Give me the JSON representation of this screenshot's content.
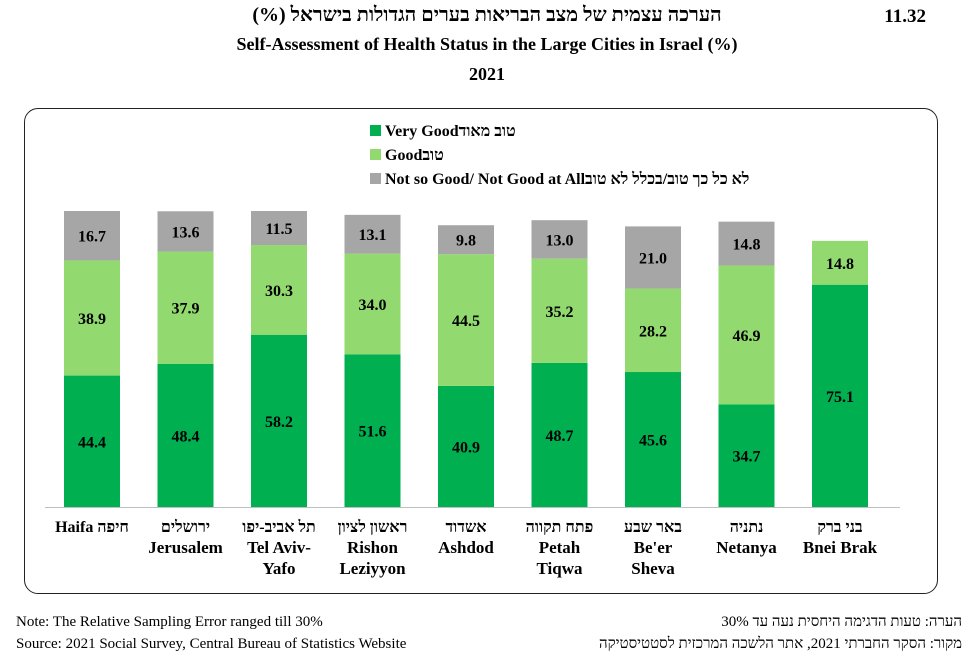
{
  "table_number": "11.32",
  "title_he": "הערכה עצמית של מצב הבריאות בערים הגדולות בישראל (%)",
  "title_en": "Self-Assessment of Health Status in the Large Cities in Israel  (%)",
  "year": "2021",
  "colors": {
    "very_good": "#00b050",
    "good": "#92d970",
    "not_good": "#a6a6a6"
  },
  "legend": [
    {
      "key": "very_good",
      "label_en": "Very Good",
      "label_he": "טוב מאוד"
    },
    {
      "key": "good",
      "label_en": "Good",
      "label_he": "טוב"
    },
    {
      "key": "not_good",
      "label_en": "Not so Good/ Not Good at All",
      "label_he": "לא כל כך טוב/בכלל לא טוב"
    }
  ],
  "chart_data": {
    "type": "bar",
    "stacked": true,
    "categories": [
      {
        "he": "חיפה",
        "en": [
          "Haifa"
        ]
      },
      {
        "he": "ירושלים",
        "en": [
          "Jerusalem"
        ]
      },
      {
        "he": "תל אביב-יפו",
        "en": [
          "Tel Aviv-",
          "Yafo"
        ]
      },
      {
        "he": "ראשון לציון",
        "en": [
          "Rishon",
          "Leziyyon"
        ]
      },
      {
        "he": "אשדוד",
        "en": [
          "Ashdod"
        ]
      },
      {
        "he": "פתח תקווה",
        "en": [
          "Petah",
          "Tiqwa"
        ]
      },
      {
        "he": "באר שבע",
        "en": [
          "Be'er",
          "Sheva"
        ]
      },
      {
        "he": "נתניה",
        "en": [
          "Netanya"
        ]
      },
      {
        "he": "בני ברק",
        "en": [
          "Bnei Brak"
        ]
      }
    ],
    "series": [
      {
        "name": "Very Good",
        "key": "very_good",
        "values": [
          44.4,
          48.4,
          58.2,
          51.6,
          40.9,
          48.7,
          45.6,
          34.7,
          75.1
        ]
      },
      {
        "name": "Good",
        "key": "good",
        "values": [
          38.9,
          37.9,
          30.3,
          34.0,
          44.5,
          35.2,
          28.2,
          46.9,
          14.8
        ]
      },
      {
        "name": "Not so Good/ Not Good at All",
        "key": "not_good",
        "values": [
          16.7,
          13.6,
          11.5,
          13.1,
          9.8,
          13.0,
          21.0,
          14.8,
          null
        ]
      }
    ],
    "labels": {
      "very_good": [
        "44.4",
        "48.4",
        "58.2",
        "51.6",
        "40.9",
        "48.7",
        "45.6",
        "34.7",
        "75.1"
      ],
      "good": [
        "38.9",
        "37.9",
        "30.3",
        "34.0",
        "44.5",
        "35.2",
        "28.2",
        "46.9",
        "14.8"
      ],
      "not_good": [
        "16.7",
        "13.6",
        "11.5",
        "13.1",
        "9.8",
        "13.0",
        "21.0",
        "14.8",
        ""
      ]
    },
    "ylim": [
      0,
      100
    ],
    "grid": false,
    "legend_position": "top"
  },
  "footer": {
    "note_en": "Note: The Relative Sampling Error ranged till 30%",
    "source_en": "Source: 2021 Social Survey, Central Bureau of Statistics Website",
    "note_he": "הערה: טעות הדגימה היחסית נעה עד 30%",
    "source_he": "מקור: הסקר החברתי 2021, אתר הלשכה המרכזית לסטטיסטיקה"
  }
}
